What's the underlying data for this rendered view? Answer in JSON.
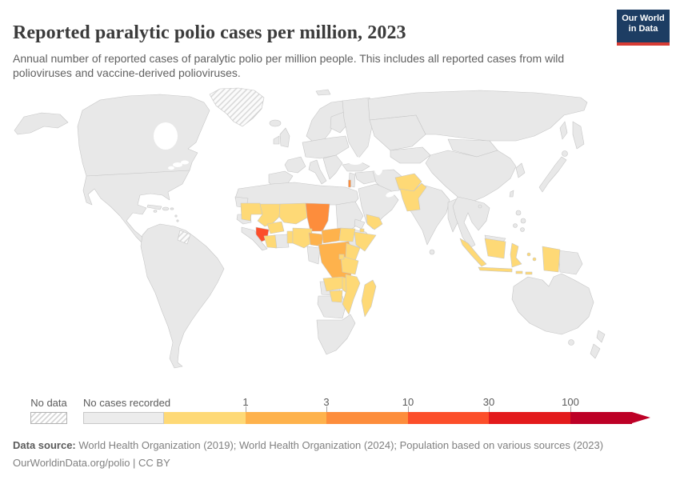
{
  "header": {
    "title": "Reported paralytic polio cases per million, 2023",
    "subtitle": "Annual number of reported cases of paralytic polio per million people. This includes all reported cases from wild polioviruses and vaccine-derived polioviruses.",
    "logo": {
      "line1": "Our World",
      "line2": "in Data",
      "bg_color": "#1d3d63",
      "accent_color": "#d73c34"
    }
  },
  "legend": {
    "no_data_label": "No data",
    "no_cases_label": "No cases recorded",
    "no_cases_color": "#ececec",
    "ticks": [
      "1",
      "3",
      "10",
      "30",
      "100"
    ],
    "bins": [
      {
        "range": "0-1",
        "color": "#fed976"
      },
      {
        "range": "1-3",
        "color": "#feb24c"
      },
      {
        "range": "3-10",
        "color": "#fd8d3c"
      },
      {
        "range": "10-30",
        "color": "#fc4e2a"
      },
      {
        "range": "30-100",
        "color": "#e31a1c"
      },
      {
        "range": ">100",
        "color": "#bd0026"
      }
    ]
  },
  "footer": {
    "data_source_label": "Data source:",
    "data_source_text": " World Health Organization (2019); World Health Organization (2024); Population based on various sources (2023)",
    "link_line": "OurWorldinData.org/polio | CC BY"
  },
  "chart_data": {
    "type": "choropleth",
    "title": "Reported paralytic polio cases per million, 2023",
    "unit": "reported paralytic polio cases per million people",
    "year": "2023",
    "default_value": "No cases recorded",
    "no_data_entities": [
      "Greenland",
      "Guyana"
    ],
    "entities": [
      {
        "name": "Afghanistan",
        "bin": "0-1"
      },
      {
        "name": "Pakistan",
        "bin": "0-1"
      },
      {
        "name": "Israel",
        "bin": "3-10"
      },
      {
        "name": "Yemen",
        "bin": "0-1"
      },
      {
        "name": "Djibouti",
        "bin": "0-1"
      },
      {
        "name": "Somalia",
        "bin": "0-1"
      },
      {
        "name": "Kenya",
        "bin": "0-1"
      },
      {
        "name": "Tanzania",
        "bin": "0-1"
      },
      {
        "name": "Burundi",
        "bin": "0-1"
      },
      {
        "name": "South Sudan",
        "bin": "0-1"
      },
      {
        "name": "Zambia",
        "bin": "0-1"
      },
      {
        "name": "Malawi",
        "bin": "0-1"
      },
      {
        "name": "Mozambique",
        "bin": "0-1"
      },
      {
        "name": "Zimbabwe",
        "bin": "0-1"
      },
      {
        "name": "Madagascar",
        "bin": "0-1"
      },
      {
        "name": "Indonesia",
        "bin": "0-1"
      },
      {
        "name": "Mauritania",
        "bin": "0-1"
      },
      {
        "name": "Mali",
        "bin": "0-1"
      },
      {
        "name": "Niger",
        "bin": "0-1"
      },
      {
        "name": "Burkina Faso",
        "bin": "0-1"
      },
      {
        "name": "Cote d'Ivoire",
        "bin": "0-1"
      },
      {
        "name": "Benin",
        "bin": "0-1"
      },
      {
        "name": "Nigeria",
        "bin": "0-1"
      },
      {
        "name": "Guinea",
        "bin": "10-30"
      },
      {
        "name": "Chad",
        "bin": "3-10"
      },
      {
        "name": "Cameroon",
        "bin": "1-3"
      },
      {
        "name": "Central African Republic",
        "bin": "1-3"
      },
      {
        "name": "Democratic Republic of Congo",
        "bin": "1-3"
      },
      {
        "name": "Greenland",
        "bin": "No data"
      },
      {
        "name": "Guyana",
        "bin": "No data"
      }
    ]
  }
}
